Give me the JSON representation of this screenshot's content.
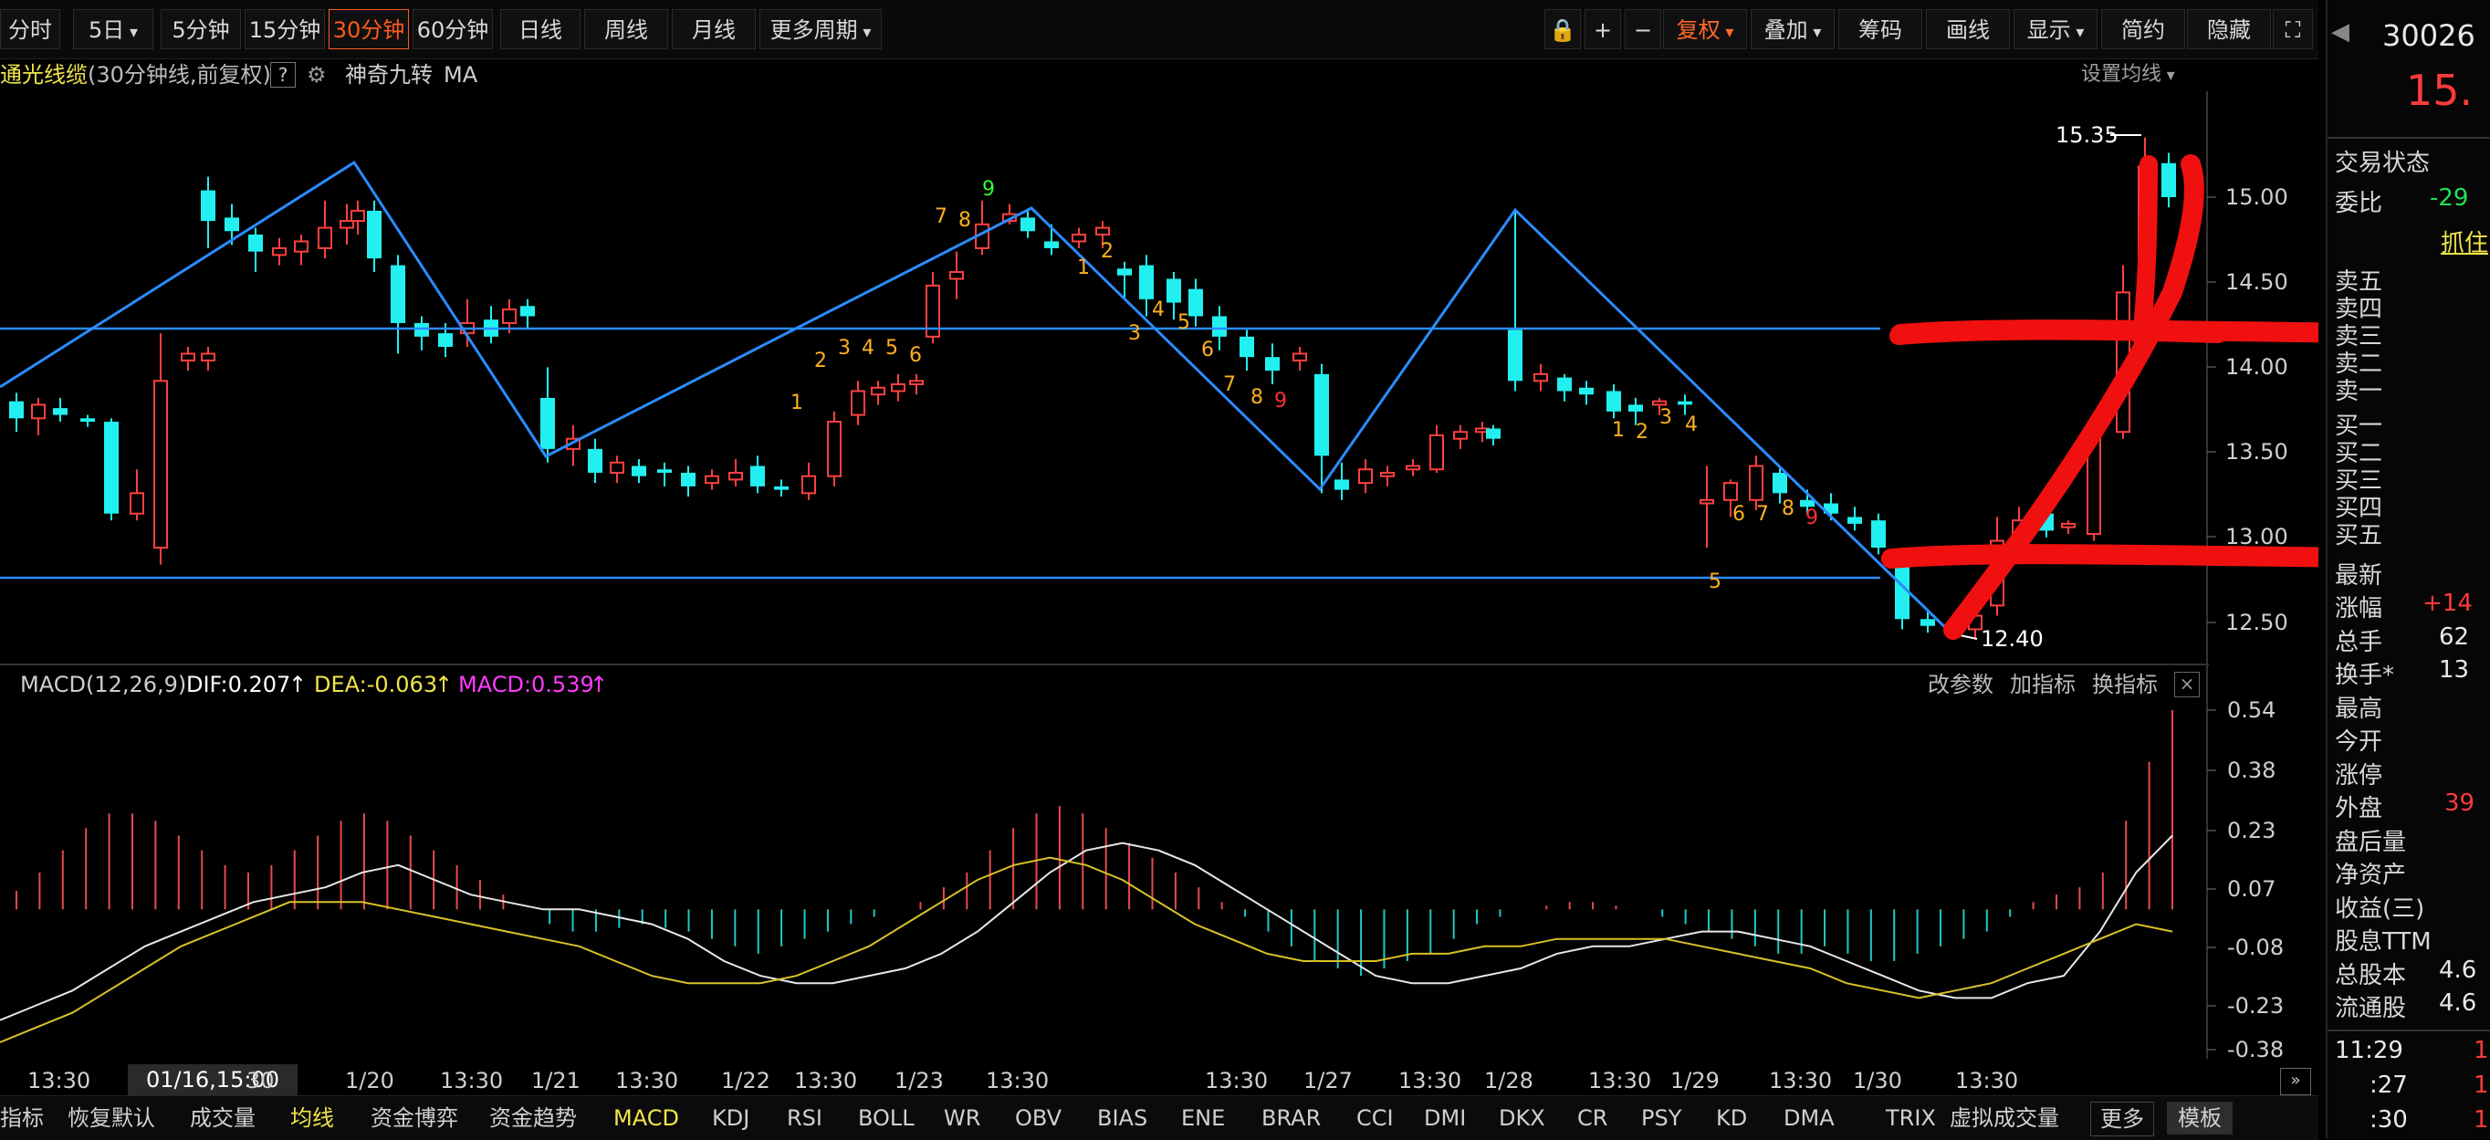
{
  "toolbar": {
    "periods": [
      "分时",
      "5日",
      "5分钟",
      "15分钟",
      "30分钟",
      "60分钟",
      "日线",
      "周线",
      "月线",
      "更多周期"
    ],
    "active_period": "30分钟",
    "right_tools": [
      "复权",
      "叠加",
      "筹码",
      "画线",
      "显示",
      "简约",
      "隐藏"
    ]
  },
  "info": {
    "indicator_name": "通光线缆",
    "indicator_desc": "(30分钟线,前复权)",
    "help": "?",
    "tool1": "神奇九转",
    "tool2": "MA",
    "set_ma": "设置均线"
  },
  "price_axis": [
    "15.00",
    "14.50",
    "14.00",
    "13.50",
    "13.00",
    "12.50"
  ],
  "annot": {
    "high": "15.35",
    "low": "12.40"
  },
  "macd": {
    "name": "MACD(12,26,9)",
    "dif": "DIF:0.207",
    "dea": "DEA:-0.063",
    "macd": "MACD:0.539",
    "links": [
      "改参数",
      "加指标",
      "换指标"
    ],
    "axis": [
      "0.54",
      "0.38",
      "0.23",
      "0.07",
      "-0.08",
      "-0.23",
      "-0.38"
    ]
  },
  "time_axis": {
    "cursor": "01/16,15:00",
    "labels": [
      "13:30",
      "30",
      "1/20",
      "13:30",
      "1/21",
      "13:30",
      "1/22",
      "13:30",
      "1/23",
      "13:30",
      "13:30",
      "1/27",
      "13:30",
      "1/28",
      "13:30",
      "1/29",
      "13:30",
      "1/30",
      "13:30"
    ]
  },
  "bottom_tabs": [
    "指标",
    "恢复默认",
    "成交量",
    "均线",
    "资金博弈",
    "资金趋势",
    "MACD",
    "KDJ",
    "RSI",
    "BOLL",
    "WR",
    "OBV",
    "BIAS",
    "ENE",
    "BRAR",
    "CCI",
    "DMI",
    "DKX",
    "CR",
    "PSY",
    "KD",
    "DMA",
    "TRIX",
    "虚拟成交量",
    "更多",
    "模板"
  ],
  "side": {
    "code": "30026",
    "price": "15.",
    "status": "交易状态",
    "ratio_label": "委比",
    "ratio_val": "-29",
    "grab": "抓住",
    "asks": [
      "卖五",
      "卖四",
      "卖三",
      "卖二",
      "卖一"
    ],
    "bids": [
      "买一",
      "买二",
      "买三",
      "买四",
      "买五"
    ],
    "latest": "最新",
    "stats": [
      {
        "label": "涨幅",
        "val": "+14"
      },
      {
        "label": "总手",
        "val": "62"
      },
      {
        "label": "换手*",
        "val": "13"
      },
      {
        "label": "最高",
        "val": ""
      },
      {
        "label": "今开",
        "val": ""
      },
      {
        "label": "涨停",
        "val": ""
      },
      {
        "label": "外盘",
        "val": "39"
      },
      {
        "label": "盘后量",
        "val": ""
      },
      {
        "label": "净资产",
        "val": ""
      },
      {
        "label": "收益(三)",
        "val": ""
      },
      {
        "label": "股息TTM",
        "val": ""
      },
      {
        "label": "总股本",
        "val": "4.6"
      },
      {
        "label": "流通股",
        "val": "4.6"
      }
    ],
    "ticks": [
      {
        "time": "11:29",
        "val": "1"
      },
      {
        "time": ":27",
        "val": "1"
      },
      {
        "time": ":30",
        "val": "1"
      }
    ]
  }
}
